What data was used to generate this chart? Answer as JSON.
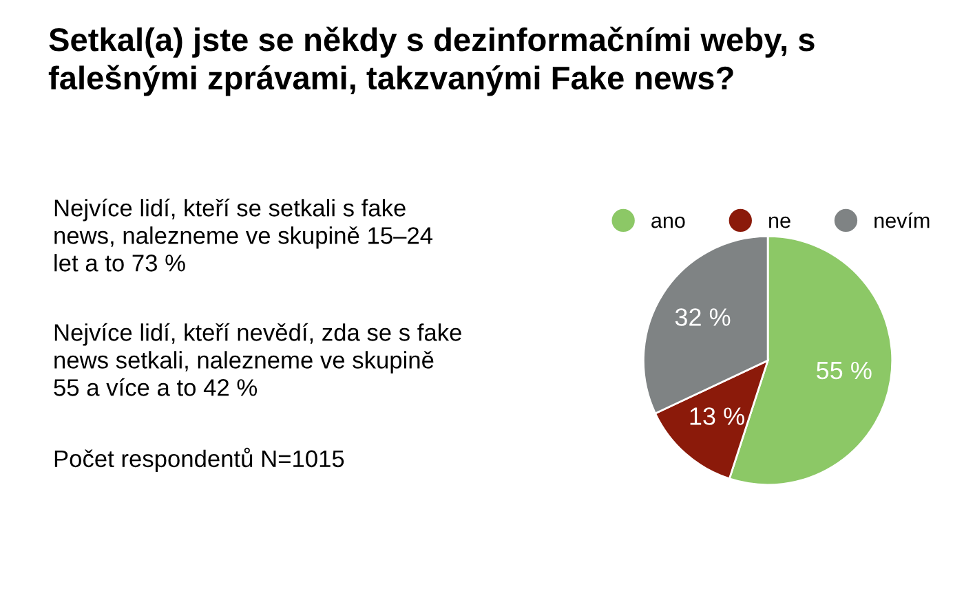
{
  "chart_data": {
    "type": "pie",
    "title": "Setkal(a) jste se někdy s dezinformačními weby, s\nfalešnými zprávami, takzvanými Fake news?",
    "categories": [
      "ano",
      "ne",
      "nevím"
    ],
    "values": [
      55,
      13,
      32
    ],
    "colors": [
      "#8cc866",
      "#8b1a0a",
      "#7f8384"
    ],
    "value_labels": [
      "55 %",
      "13 %",
      "32 %"
    ],
    "legend": "top",
    "annotations": [
      "Nejvíce lidí, kteří se setkali s fake\nnews, nalezneme ve skupině 15–24\nlet a to 73 %",
      "Nejvíce lidí, kteří nevědí, zda se s fake\nnews setkali, nalezneme ve skupině\n55 a více a to 42 %",
      "Počet respondentů N=1015"
    ]
  }
}
